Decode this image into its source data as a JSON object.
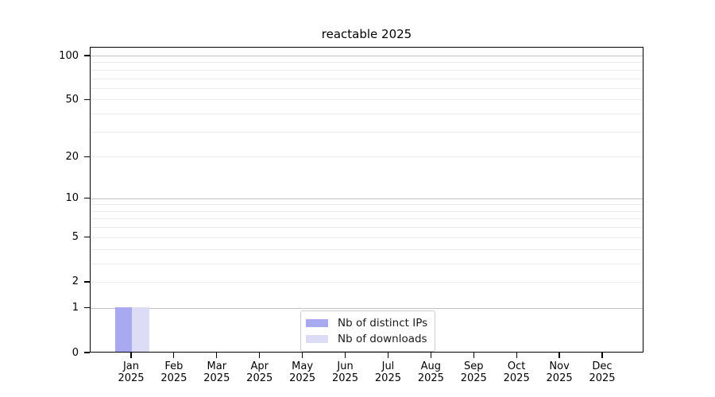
{
  "chart_data": {
    "type": "bar",
    "title": "reactable 2025",
    "categories": [
      "Jan 2025",
      "Feb 2025",
      "Mar 2025",
      "Apr 2025",
      "May 2025",
      "Jun 2025",
      "Jul 2025",
      "Aug 2025",
      "Sep 2025",
      "Oct 2025",
      "Nov 2025",
      "Dec 2025"
    ],
    "series": [
      {
        "name": "Nb of distinct IPs",
        "color": "#a9a9f2",
        "values": [
          1,
          0,
          0,
          0,
          0,
          0,
          0,
          0,
          0,
          0,
          0,
          0
        ]
      },
      {
        "name": "Nb of downloads",
        "color": "#dcdcf7",
        "values": [
          1,
          0,
          0,
          0,
          0,
          0,
          0,
          0,
          0,
          0,
          0,
          0
        ]
      }
    ],
    "yscale": "log1p",
    "ylim": [
      0,
      115
    ],
    "ytick_labels": [
      0,
      1,
      2,
      5,
      10,
      20,
      50,
      100
    ],
    "major_gridline_values": [
      1,
      10,
      100
    ],
    "minor_gridline_values": [
      3,
      4,
      6,
      7,
      8,
      9,
      30,
      40,
      60,
      70,
      80,
      90
    ],
    "grid": "horizontal",
    "legend_position": "lower center",
    "colors": {
      "major_grid": "#c2c2c2",
      "minor_grid": "#ececec",
      "axis": "#000000",
      "text": "#000000"
    }
  }
}
